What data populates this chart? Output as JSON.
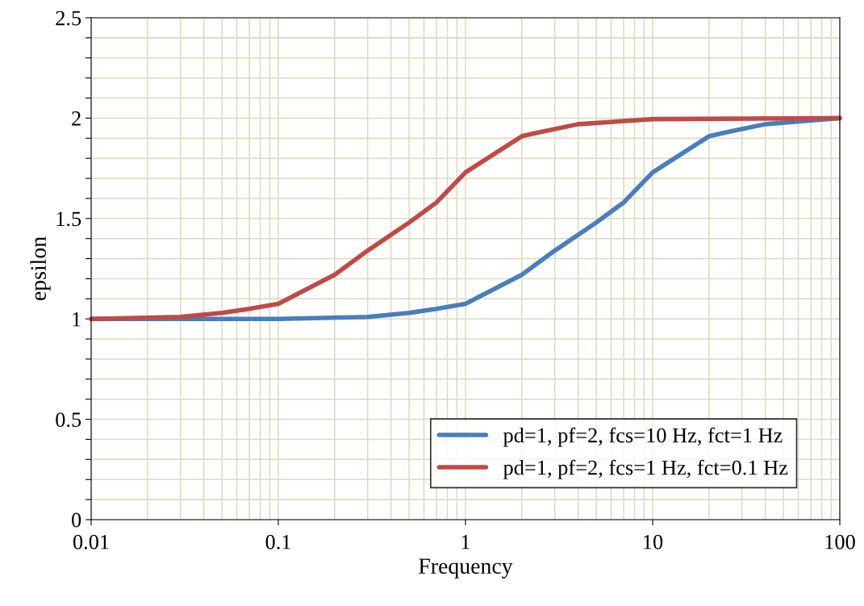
{
  "chart_data": {
    "type": "line",
    "xlabel": "Frequency",
    "ylabel": "epsilon",
    "log": "x",
    "xlim": [
      0.01,
      100
    ],
    "ylim": [
      0,
      2.5
    ],
    "xticks": [
      0.01,
      {
        "value": 0.02,
        "label": null
      },
      {
        "value": 0.03,
        "label": null
      },
      {
        "value": 0.04,
        "label": null
      },
      {
        "value": 0.05,
        "label": null
      },
      {
        "value": 0.06,
        "label": null
      },
      {
        "value": 0.07,
        "label": null
      },
      {
        "value": 0.08,
        "label": null
      },
      {
        "value": 0.09,
        "label": null
      },
      0.1,
      {
        "value": 0.2,
        "label": null
      },
      {
        "value": 0.3,
        "label": null
      },
      {
        "value": 0.4,
        "label": null
      },
      {
        "value": 0.5,
        "label": null
      },
      {
        "value": 0.6,
        "label": null
      },
      {
        "value": 0.7,
        "label": null
      },
      {
        "value": 0.8,
        "label": null
      },
      {
        "value": 0.9,
        "label": null
      },
      1,
      {
        "value": 2,
        "label": null
      },
      {
        "value": 3,
        "label": null
      },
      {
        "value": 4,
        "label": null
      },
      {
        "value": 5,
        "label": null
      },
      {
        "value": 6,
        "label": null
      },
      {
        "value": 7,
        "label": null
      },
      {
        "value": 8,
        "label": null
      },
      {
        "value": 9,
        "label": null
      },
      10,
      {
        "value": 20,
        "label": null
      },
      {
        "value": 30,
        "label": null
      },
      {
        "value": 40,
        "label": null
      },
      {
        "value": 50,
        "label": null
      },
      {
        "value": 60,
        "label": null
      },
      {
        "value": 70,
        "label": null
      },
      {
        "value": 80,
        "label": null
      },
      {
        "value": 90,
        "label": null
      },
      100
    ],
    "yticks": [
      0,
      {
        "value": 0.1,
        "label": null
      },
      {
        "value": 0.2,
        "label": null
      },
      {
        "value": 0.3,
        "label": null
      },
      {
        "value": 0.4,
        "label": null
      },
      0.5,
      {
        "value": 0.6,
        "label": null
      },
      {
        "value": 0.7,
        "label": null
      },
      {
        "value": 0.8,
        "label": null
      },
      {
        "value": 0.9,
        "label": null
      },
      1,
      {
        "value": 1.1,
        "label": null
      },
      {
        "value": 1.2,
        "label": null
      },
      {
        "value": 1.3,
        "label": null
      },
      {
        "value": 1.4,
        "label": null
      },
      1.5,
      {
        "value": 1.6,
        "label": null
      },
      {
        "value": 1.7,
        "label": null
      },
      {
        "value": 1.8,
        "label": null
      },
      {
        "value": 1.9,
        "label": null
      },
      2,
      {
        "value": 2.1,
        "label": null
      },
      {
        "value": 2.2,
        "label": null
      },
      {
        "value": 2.3,
        "label": null
      },
      {
        "value": 2.4,
        "label": null
      },
      2.5
    ],
    "grid": true,
    "legend": "bottom right",
    "marker": "none",
    "line_style": "solid",
    "series": [
      {
        "name": "pd=1, pf=2, fcs=10 Hz, fct=1 Hz",
        "color": "#4a7ebb",
        "x": [
          0.01,
          0.1,
          0.3,
          0.5,
          0.7,
          1,
          2,
          3,
          5,
          7,
          10,
          20,
          25,
          40,
          100
        ],
        "values": [
          1.0,
          1.0,
          1.01,
          1.03,
          1.05,
          1.075,
          1.22,
          1.34,
          1.48,
          1.58,
          1.73,
          1.91,
          1.93,
          1.97,
          2.0
        ]
      },
      {
        "name": "pd=1, pf=2, fcs=1 Hz, fct=0.1 Hz",
        "color": "#be4b48",
        "x": [
          0.01,
          0.03,
          0.05,
          0.07,
          0.1,
          0.2,
          0.3,
          0.5,
          0.7,
          1,
          2,
          2.5,
          4,
          10,
          100
        ],
        "values": [
          1.0,
          1.01,
          1.03,
          1.05,
          1.075,
          1.22,
          1.34,
          1.48,
          1.58,
          1.73,
          1.91,
          1.93,
          1.97,
          1.995,
          2.0
        ]
      }
    ]
  }
}
